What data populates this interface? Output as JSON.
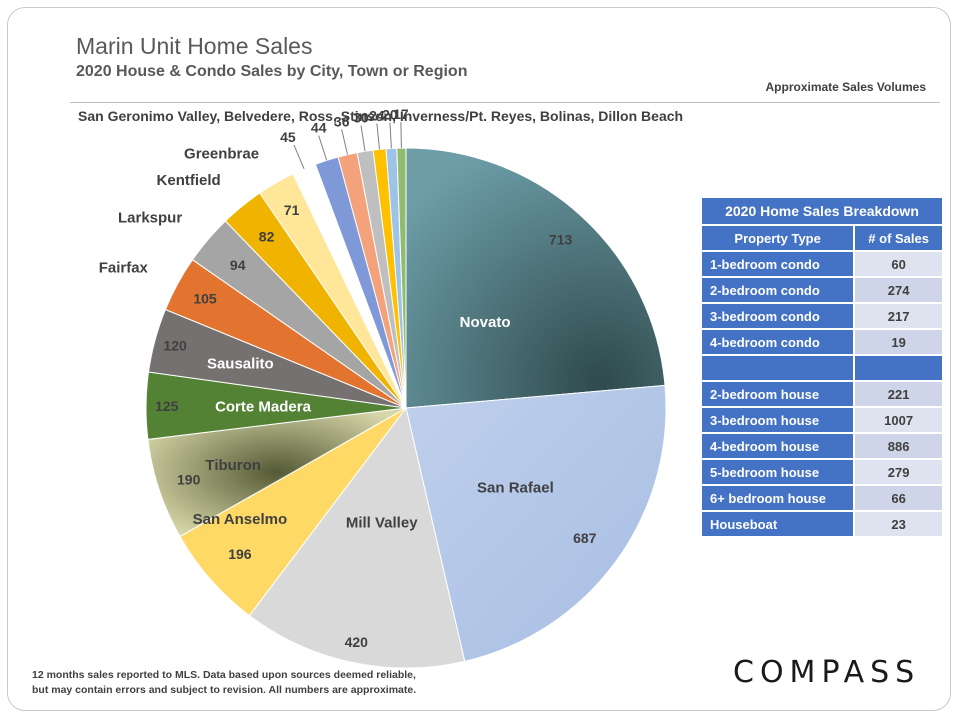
{
  "header": {
    "title": "Marin Unit Home Sales",
    "subtitle": "2020 House & Condo Sales by City, Town or Region",
    "approx_note": "Approximate Sales Volumes",
    "regions_note": "San Geronimo Valley, Belvedere, Ross, Stinson, Inverness/Pt. Reyes, Bolinas, Dillon Beach"
  },
  "chart_data": {
    "type": "pie",
    "title": "2020 House & Condo Sales by City, Town or Region",
    "slices": [
      {
        "label": "Novato",
        "value": 713,
        "color": "#4f7f88"
      },
      {
        "label": "San Rafael",
        "value": 687,
        "color": "#b4c7e7"
      },
      {
        "label": "Mill Valley",
        "value": 420,
        "color": "#d9d9d9"
      },
      {
        "label": "San Anselmo",
        "value": 196,
        "color": "#ffd966"
      },
      {
        "label": "Tiburon",
        "value": 190,
        "color": "#b9b28a"
      },
      {
        "label": "Corte Madera",
        "value": 125,
        "color": "#548235"
      },
      {
        "label": "Sausalito",
        "value": 120,
        "color": "#767171"
      },
      {
        "label": "Fairfax",
        "value": 105,
        "color": "#e2742f"
      },
      {
        "label": "Larkspur",
        "value": 94,
        "color": "#a5a5a5"
      },
      {
        "label": "Kentfield",
        "value": 82,
        "color": "#f0b400"
      },
      {
        "label": "Greenbrae",
        "value": 71,
        "color": "#ffe699"
      },
      {
        "label": "",
        "value": 45,
        "color": "#ffffff"
      },
      {
        "label": "",
        "value": 44,
        "color": "#7f98d8"
      },
      {
        "label": "",
        "value": 36,
        "color": "#f4a27b"
      },
      {
        "label": "",
        "value": 30,
        "color": "#bfbfbf"
      },
      {
        "label": "",
        "value": 24,
        "color": "#ffc000"
      },
      {
        "label": "",
        "value": 20,
        "color": "#9dc3e6"
      },
      {
        "label": "",
        "value": 17,
        "color": "#8fbc6f"
      }
    ]
  },
  "table": {
    "title": "2020 Home Sales Breakdown",
    "col1": "Property Type",
    "col2": "# of Sales",
    "rows": [
      {
        "type": "1-bedroom condo",
        "sales": "60"
      },
      {
        "type": "2-bedroom condo",
        "sales": "274"
      },
      {
        "type": "3-bedroom condo",
        "sales": "217"
      },
      {
        "type": "4-bedroom condo",
        "sales": "19"
      },
      {
        "type": "",
        "sales": ""
      },
      {
        "type": "2-bedroom house",
        "sales": "221"
      },
      {
        "type": "3-bedroom house",
        "sales": "1007"
      },
      {
        "type": "4-bedroom house",
        "sales": "886"
      },
      {
        "type": "5-bedroom house",
        "sales": "279"
      },
      {
        "type": "6+ bedroom house",
        "sales": "66"
      },
      {
        "type": "Houseboat",
        "sales": "23"
      }
    ]
  },
  "footer": {
    "line1": "12 months sales reported to MLS. Data based upon sources deemed reliable,",
    "line2": "but may contain errors and subject to revision. All numbers are approximate."
  },
  "brand": {
    "logo": "COMPASS"
  }
}
